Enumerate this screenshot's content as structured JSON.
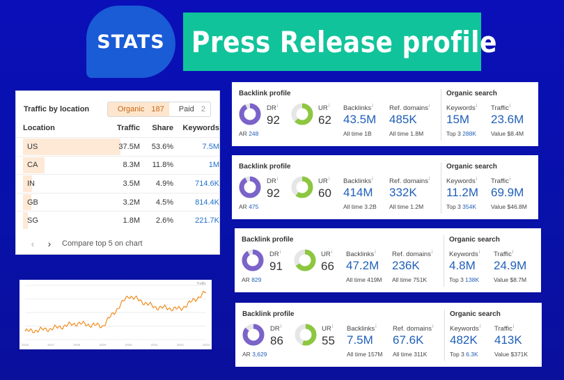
{
  "header": {
    "badge": "STATS",
    "title": "Press Release profile"
  },
  "colors": {
    "banner": "#11c39b",
    "badge": "#1a5bd6",
    "dr": "#7b63c9",
    "ur": "#8dc63f",
    "link": "#1f5fb8"
  },
  "traffic": {
    "title": "Traffic by location",
    "organic_label": "Organic",
    "organic_count": "187",
    "paid_label": "Paid",
    "paid_count": "2",
    "columns": [
      "Location",
      "Traffic",
      "Share",
      "Keywords"
    ],
    "rows": [
      {
        "location": "US",
        "traffic": "37.5M",
        "share": "53.6%",
        "keywords": "7.5M",
        "share_value": 53.6
      },
      {
        "location": "CA",
        "traffic": "8.3M",
        "share": "11.8%",
        "keywords": "1M",
        "share_value": 11.8
      },
      {
        "location": "IN",
        "traffic": "3.5M",
        "share": "4.9%",
        "keywords": "714.6K",
        "share_value": 4.9
      },
      {
        "location": "GB",
        "traffic": "3.2M",
        "share": "4.5%",
        "keywords": "814.4K",
        "share_value": 4.5
      },
      {
        "location": "SG",
        "traffic": "1.8M",
        "share": "2.6%",
        "keywords": "221.7K",
        "share_value": 2.6
      }
    ],
    "compare_label": "Compare top 5 on chart"
  },
  "chart_data": {
    "type": "line",
    "ylabel": "Traffic",
    "x": [
      "2016",
      "2017",
      "2018",
      "2019",
      "2020",
      "2021",
      "2022",
      "2023"
    ],
    "values": [
      1.2,
      1.6,
      2.4,
      2.0,
      6.5,
      4.8,
      4.5,
      7.0
    ]
  },
  "cards": [
    {
      "backlink_title": "Backlink profile",
      "organic_title": "Organic search",
      "dr_label": "DR",
      "dr": "92",
      "ar_label": "AR",
      "ar": "248",
      "dr_value": 92,
      "ur_label": "UR",
      "ur": "62",
      "ur_value": 62,
      "backlinks_label": "Backlinks",
      "backlinks": "43.5M",
      "backlinks_all_label": "All time",
      "backlinks_all": "1B",
      "refdomains_label": "Ref. domains",
      "refdomains": "485K",
      "refdomains_all_label": "All time",
      "refdomains_all": "1.8M",
      "keywords_label": "Keywords",
      "keywords": "15M",
      "top3_label": "Top 3",
      "top3": "288K",
      "traffic_label": "Traffic",
      "traffic": "23.6M",
      "value_label": "Value",
      "value": "$8.4M"
    },
    {
      "backlink_title": "Backlink profile",
      "organic_title": "Organic search",
      "dr_label": "DR",
      "dr": "92",
      "ar_label": "AR",
      "ar": "475",
      "dr_value": 92,
      "ur_label": "UR",
      "ur": "60",
      "ur_value": 60,
      "backlinks_label": "Backlinks",
      "backlinks": "414M",
      "backlinks_all_label": "All time",
      "backlinks_all": "3.2B",
      "refdomains_label": "Ref. domains",
      "refdomains": "332K",
      "refdomains_all_label": "All time",
      "refdomains_all": "1.2M",
      "keywords_label": "Keywords",
      "keywords": "11.2M",
      "top3_label": "Top 3",
      "top3": "354K",
      "traffic_label": "Traffic",
      "traffic": "69.9M",
      "value_label": "Value",
      "value": "$46.8M"
    },
    {
      "backlink_title": "Backlink profile",
      "organic_title": "Organic search",
      "dr_label": "DR",
      "dr": "91",
      "ar_label": "AR",
      "ar": "829",
      "dr_value": 91,
      "ur_label": "UR",
      "ur": "66",
      "ur_value": 66,
      "backlinks_label": "Backlinks",
      "backlinks": "47.2M",
      "backlinks_all_label": "All time",
      "backlinks_all": "419M",
      "refdomains_label": "Ref. domains",
      "refdomains": "236K",
      "refdomains_all_label": "All time",
      "refdomains_all": "751K",
      "keywords_label": "Keywords",
      "keywords": "4.8M",
      "top3_label": "Top 3",
      "top3": "138K",
      "traffic_label": "Traffic",
      "traffic": "24.9M",
      "value_label": "Value",
      "value": "$8.7M"
    },
    {
      "backlink_title": "Backlink profile",
      "organic_title": "Organic search",
      "dr_label": "DR",
      "dr": "86",
      "ar_label": "AR",
      "ar": "3,629",
      "dr_value": 86,
      "ur_label": "UR",
      "ur": "55",
      "ur_value": 55,
      "backlinks_label": "Backlinks",
      "backlinks": "7.5M",
      "backlinks_all_label": "All time",
      "backlinks_all": "157M",
      "refdomains_label": "Ref. domains",
      "refdomains": "67.6K",
      "refdomains_all_label": "All time",
      "refdomains_all": "311K",
      "keywords_label": "Keywords",
      "keywords": "482K",
      "top3_label": "Top 3",
      "top3": "6.3K",
      "traffic_label": "Traffic",
      "traffic": "413K",
      "value_label": "Value",
      "value": "$371K"
    }
  ]
}
